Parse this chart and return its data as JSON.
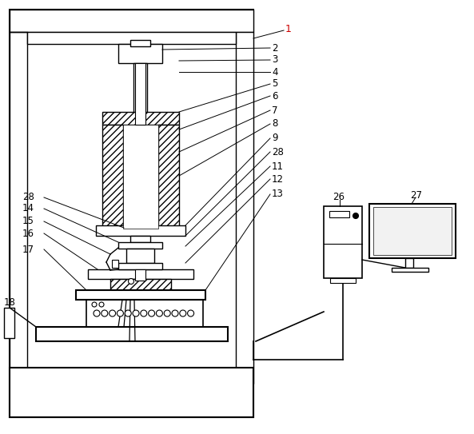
{
  "bg_color": "#ffffff",
  "label_color_1": "#cc0000",
  "label_color_default": "#000000",
  "figsize": [
    5.93,
    5.43
  ],
  "dpi": 100
}
